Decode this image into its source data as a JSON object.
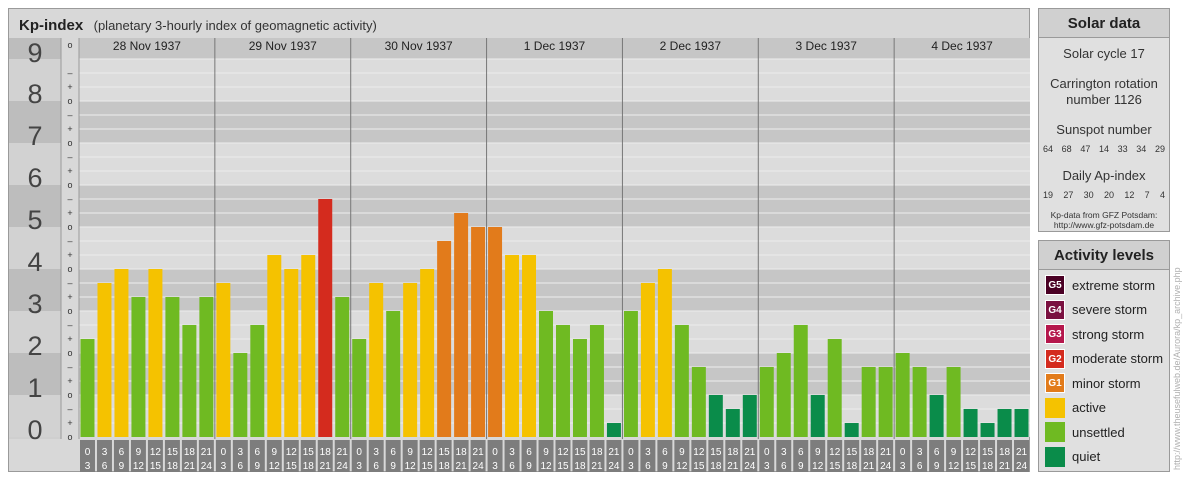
{
  "header": {
    "title": "Kp-index",
    "subtitle": "(planetary 3-hourly index of geomagnetic activity)"
  },
  "chart_data": {
    "type": "bar",
    "ylim": [
      0,
      9
    ],
    "y_ticks": [
      "0",
      "1",
      "2",
      "3",
      "4",
      "5",
      "6",
      "7",
      "8",
      "9"
    ],
    "minor_ticks": [
      "o",
      "+",
      "–"
    ],
    "days": [
      "28 Nov 1937",
      "29 Nov 1937",
      "30 Nov 1937",
      "1 Dec 1937",
      "2 Dec 1937",
      "3 Dec 1937",
      "4 Dec 1937"
    ],
    "hour_start": [
      "0",
      "3",
      "6",
      "9",
      "12",
      "15",
      "18",
      "21"
    ],
    "hour_end": [
      "3",
      "6",
      "9",
      "12",
      "15",
      "18",
      "21",
      "24"
    ],
    "values": [
      [
        2.333,
        3.667,
        4.0,
        3.333,
        4.0,
        3.333,
        2.667,
        3.333
      ],
      [
        3.667,
        2.0,
        2.667,
        4.333,
        4.0,
        4.333,
        5.667,
        3.333
      ],
      [
        2.333,
        3.667,
        3.0,
        3.667,
        4.0,
        4.667,
        5.333,
        5.0
      ],
      [
        5.0,
        4.333,
        4.333,
        3.0,
        2.667,
        2.333,
        2.667,
        0.333
      ],
      [
        3.0,
        3.667,
        4.0,
        2.667,
        1.667,
        1.0,
        0.667,
        1.0
      ],
      [
        1.667,
        2.0,
        2.667,
        1.0,
        2.333,
        0.333,
        1.667,
        1.667
      ],
      [
        2.0,
        1.667,
        1.0,
        1.667,
        0.667,
        0.333,
        0.667,
        0.667
      ]
    ],
    "level_colors": {
      "quiet": "#0a8c4a",
      "unsettled": "#6fba22",
      "active": "#f5c200",
      "minor_storm": "#e27b1b",
      "moderate_storm": "#d42b1e",
      "strong_storm": "#b5174c",
      "severe_storm": "#7a1040",
      "extreme_storm": "#4a0024"
    }
  },
  "solar": {
    "header": "Solar data",
    "cycle": "Solar cycle 17",
    "rotation_line1": "Carrington rotation",
    "rotation_line2": "number 1126",
    "sunspot_label": "Sunspot number",
    "sunspot_values": [
      "64",
      "68",
      "47",
      "14",
      "33",
      "34",
      "29"
    ],
    "ap_label": "Daily Ap-index",
    "ap_values": [
      "19",
      "27",
      "30",
      "20",
      "12",
      "7",
      "4"
    ],
    "credit_line1": "Kp-data from GFZ Potsdam:",
    "credit_line2": "http://www.gfz-potsdam.de"
  },
  "activity": {
    "header": "Activity levels",
    "items": [
      {
        "badge": "G5",
        "label": "extreme storm",
        "color": "#4a0024"
      },
      {
        "badge": "G4",
        "label": "severe storm",
        "color": "#7a1040"
      },
      {
        "badge": "G3",
        "label": "strong storm",
        "color": "#b5174c"
      },
      {
        "badge": "G2",
        "label": "moderate storm",
        "color": "#d42b1e"
      },
      {
        "badge": "G1",
        "label": "minor storm",
        "color": "#e27b1b"
      },
      {
        "badge": "",
        "label": "active",
        "color": "#f5c200"
      },
      {
        "badge": "",
        "label": "unsettled",
        "color": "#6fba22"
      },
      {
        "badge": "",
        "label": "quiet",
        "color": "#0a8c4a"
      }
    ]
  },
  "watermark": "http://www.theusefulweb.de/Aurora/kp_archive.php"
}
